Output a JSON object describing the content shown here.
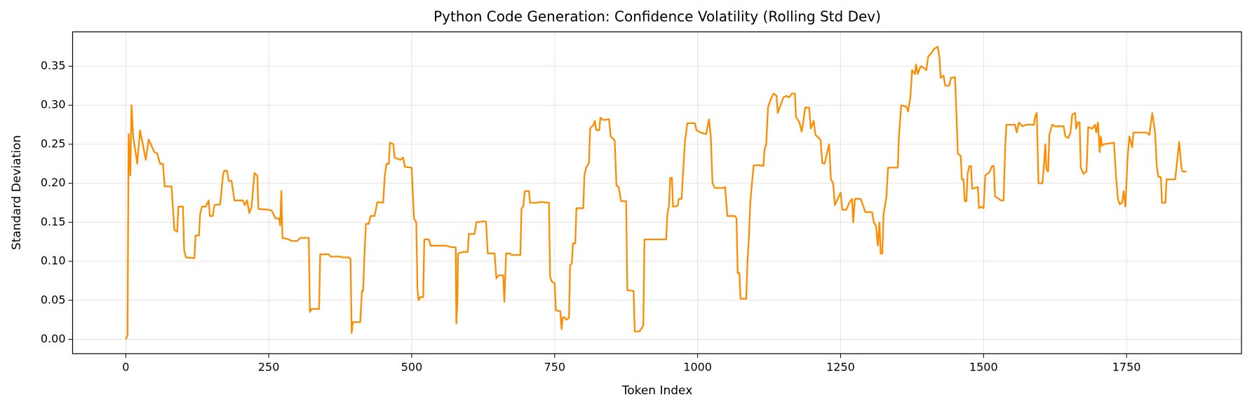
{
  "chart_data": {
    "type": "line",
    "title": "Python Code Generation: Confidence Volatility (Rolling Std Dev)",
    "x_label": "Token Index",
    "y_label": "Standard Deviation",
    "color": "#ff8c00",
    "grid": true,
    "xlim": [
      -93,
      1951
    ],
    "ylim": [
      -0.0184,
      0.394
    ],
    "xticks": [
      0,
      250,
      500,
      750,
      1000,
      1250,
      1500,
      1750
    ],
    "yticks": [
      {
        "value": 0,
        "label": "0.00"
      },
      {
        "value": 0.05,
        "label": "0.05"
      },
      {
        "value": 0.1,
        "label": "0.10"
      },
      {
        "value": 0.15,
        "label": "0.15"
      },
      {
        "value": 0.2,
        "label": "0.20"
      },
      {
        "value": 0.25,
        "label": "0.25"
      },
      {
        "value": 0.3,
        "label": "0.30"
      },
      {
        "value": 0.35,
        "label": "0.35"
      }
    ],
    "x": [
      0,
      3,
      5,
      8,
      10,
      13,
      20,
      25,
      35,
      40,
      50,
      55,
      60,
      65,
      68,
      80,
      85,
      90,
      92,
      100,
      102,
      105,
      120,
      122,
      128,
      130,
      133,
      140,
      145,
      147,
      152,
      155,
      165,
      170,
      172,
      177,
      180,
      185,
      190,
      205,
      208,
      212,
      216,
      220,
      225,
      230,
      232,
      250,
      255,
      262,
      268,
      270,
      272,
      274,
      285,
      290,
      300,
      305,
      320,
      322,
      325,
      338,
      340,
      355,
      358,
      375,
      380,
      390,
      393,
      395,
      397,
      410,
      413,
      415,
      418,
      420,
      425,
      428,
      435,
      440,
      450,
      453,
      456,
      460,
      462,
      468,
      470,
      480,
      485,
      488,
      500,
      502,
      504,
      508,
      510,
      512,
      515,
      520,
      522,
      530,
      533,
      560,
      570,
      577,
      578,
      580,
      581,
      590,
      598,
      600,
      610,
      613,
      625,
      630,
      633,
      645,
      648,
      652,
      660,
      662,
      665,
      672,
      675,
      690,
      692,
      695,
      698,
      705,
      707,
      720,
      725,
      740,
      742,
      745,
      750,
      752,
      760,
      762,
      764,
      768,
      770,
      775,
      777,
      780,
      782,
      786,
      788,
      800,
      802,
      805,
      810,
      812,
      818,
      820,
      823,
      828,
      830,
      835,
      845,
      848,
      855,
      858,
      862,
      866,
      875,
      877,
      888,
      890,
      898,
      902,
      905,
      907,
      920,
      945,
      947,
      950,
      952,
      955,
      957,
      965,
      967,
      972,
      975,
      978,
      982,
      995,
      998,
      1005,
      1015,
      1018,
      1020,
      1023,
      1026,
      1030,
      1045,
      1048,
      1052,
      1065,
      1068,
      1070,
      1073,
      1075,
      1085,
      1087,
      1090,
      1092,
      1095,
      1098,
      1110,
      1115,
      1117,
      1120,
      1123,
      1128,
      1133,
      1138,
      1140,
      1145,
      1150,
      1155,
      1160,
      1165,
      1170,
      1172,
      1178,
      1182,
      1185,
      1188,
      1195,
      1198,
      1203,
      1206,
      1212,
      1215,
      1218,
      1222,
      1226,
      1230,
      1233,
      1237,
      1240,
      1245,
      1250,
      1253,
      1260,
      1265,
      1270,
      1272,
      1275,
      1285,
      1290,
      1293,
      1305,
      1308,
      1312,
      1315,
      1318,
      1320,
      1323,
      1325,
      1330,
      1333,
      1350,
      1352,
      1356,
      1365,
      1368,
      1372,
      1375,
      1380,
      1382,
      1385,
      1390,
      1395,
      1400,
      1403,
      1410,
      1413,
      1420,
      1423,
      1425,
      1430,
      1433,
      1440,
      1443,
      1450,
      1452,
      1455,
      1460,
      1462,
      1465,
      1467,
      1470,
      1472,
      1475,
      1478,
      1480,
      1490,
      1492,
      1495,
      1500,
      1503,
      1510,
      1515,
      1518,
      1520,
      1527,
      1530,
      1535,
      1538,
      1540,
      1555,
      1558,
      1562,
      1568,
      1575,
      1588,
      1590,
      1593,
      1596,
      1603,
      1605,
      1608,
      1610,
      1613,
      1615,
      1620,
      1625,
      1640,
      1643,
      1648,
      1652,
      1655,
      1660,
      1662,
      1665,
      1668,
      1670,
      1675,
      1680,
      1683,
      1690,
      1695,
      1697,
      1700,
      1703,
      1705,
      1707,
      1710,
      1728,
      1732,
      1735,
      1738,
      1742,
      1745,
      1748,
      1752,
      1755,
      1760,
      1762,
      1785,
      1790,
      1795,
      1800,
      1803,
      1806,
      1810,
      1812,
      1818,
      1820,
      1835,
      1838,
      1842,
      1846,
      1848,
      1855
    ],
    "values": [
      0,
      0.005,
      0.263,
      0.21,
      0.3,
      0.26,
      0.225,
      0.268,
      0.23,
      0.256,
      0.24,
      0.238,
      0.225,
      0.225,
      0.196,
      0.196,
      0.14,
      0.138,
      0.17,
      0.17,
      0.115,
      0.105,
      0.104,
      0.133,
      0.133,
      0.16,
      0.17,
      0.17,
      0.178,
      0.158,
      0.158,
      0.172,
      0.173,
      0.21,
      0.216,
      0.216,
      0.203,
      0.203,
      0.178,
      0.178,
      0.172,
      0.178,
      0.162,
      0.17,
      0.213,
      0.21,
      0.167,
      0.166,
      0.165,
      0.155,
      0.155,
      0.146,
      0.19,
      0.13,
      0.128,
      0.126,
      0.126,
      0.13,
      0.13,
      0.035,
      0.039,
      0.039,
      0.109,
      0.109,
      0.106,
      0.106,
      0.105,
      0.105,
      0.103,
      0.008,
      0.022,
      0.022,
      0.062,
      0.062,
      0.12,
      0.148,
      0.148,
      0.158,
      0.158,
      0.176,
      0.175,
      0.21,
      0.225,
      0.225,
      0.252,
      0.25,
      0.233,
      0.23,
      0.233,
      0.221,
      0.22,
      0.185,
      0.155,
      0.15,
      0.065,
      0.05,
      0.054,
      0.054,
      0.128,
      0.128,
      0.12,
      0.12,
      0.118,
      0.118,
      0.02,
      0.05,
      0.11,
      0.112,
      0.112,
      0.135,
      0.135,
      0.15,
      0.151,
      0.151,
      0.11,
      0.11,
      0.078,
      0.082,
      0.082,
      0.048,
      0.11,
      0.11,
      0.108,
      0.108,
      0.168,
      0.17,
      0.19,
      0.19,
      0.175,
      0.175,
      0.176,
      0.175,
      0.08,
      0.074,
      0.072,
      0.037,
      0.036,
      0.013,
      0.028,
      0.028,
      0.025,
      0.027,
      0.095,
      0.097,
      0.123,
      0.123,
      0.168,
      0.168,
      0.21,
      0.22,
      0.226,
      0.27,
      0.275,
      0.28,
      0.268,
      0.268,
      0.284,
      0.281,
      0.282,
      0.26,
      0.255,
      0.197,
      0.195,
      0.177,
      0.177,
      0.063,
      0.062,
      0.01,
      0.01,
      0.014,
      0.018,
      0.128,
      0.128,
      0.128,
      0.16,
      0.172,
      0.207,
      0.207,
      0.17,
      0.171,
      0.18,
      0.18,
      0.22,
      0.255,
      0.277,
      0.277,
      0.268,
      0.265,
      0.263,
      0.275,
      0.282,
      0.26,
      0.2,
      0.194,
      0.194,
      0.195,
      0.158,
      0.158,
      0.155,
      0.085,
      0.085,
      0.052,
      0.052,
      0.097,
      0.135,
      0.175,
      0.2,
      0.223,
      0.223,
      0.222,
      0.243,
      0.25,
      0.297,
      0.308,
      0.315,
      0.312,
      0.29,
      0.3,
      0.31,
      0.312,
      0.31,
      0.315,
      0.315,
      0.285,
      0.278,
      0.266,
      0.28,
      0.297,
      0.297,
      0.27,
      0.28,
      0.262,
      0.258,
      0.255,
      0.226,
      0.225,
      0.238,
      0.25,
      0.205,
      0.2,
      0.172,
      0.18,
      0.188,
      0.166,
      0.166,
      0.175,
      0.18,
      0.15,
      0.18,
      0.18,
      0.17,
      0.163,
      0.163,
      0.15,
      0.145,
      0.12,
      0.15,
      0.11,
      0.11,
      0.16,
      0.182,
      0.22,
      0.22,
      0.26,
      0.3,
      0.298,
      0.292,
      0.31,
      0.345,
      0.34,
      0.352,
      0.34,
      0.35,
      0.348,
      0.345,
      0.362,
      0.368,
      0.372,
      0.375,
      0.36,
      0.335,
      0.338,
      0.325,
      0.325,
      0.335,
      0.336,
      0.3,
      0.238,
      0.235,
      0.205,
      0.205,
      0.177,
      0.177,
      0.212,
      0.222,
      0.222,
      0.193,
      0.195,
      0.168,
      0.17,
      0.168,
      0.21,
      0.214,
      0.222,
      0.222,
      0.183,
      0.18,
      0.178,
      0.178,
      0.25,
      0.275,
      0.275,
      0.265,
      0.278,
      0.273,
      0.275,
      0.275,
      0.285,
      0.29,
      0.2,
      0.2,
      0.218,
      0.25,
      0.218,
      0.215,
      0.262,
      0.275,
      0.273,
      0.273,
      0.26,
      0.258,
      0.265,
      0.288,
      0.29,
      0.27,
      0.278,
      0.278,
      0.22,
      0.212,
      0.215,
      0.272,
      0.27,
      0.275,
      0.265,
      0.278,
      0.24,
      0.26,
      0.248,
      0.25,
      0.252,
      0.205,
      0.18,
      0.173,
      0.175,
      0.19,
      0.17,
      0.235,
      0.26,
      0.246,
      0.265,
      0.265,
      0.262,
      0.29,
      0.265,
      0.22,
      0.208,
      0.208,
      0.175,
      0.175,
      0.205,
      0.205,
      0.225,
      0.253,
      0.22,
      0.215,
      0.215
    ]
  }
}
